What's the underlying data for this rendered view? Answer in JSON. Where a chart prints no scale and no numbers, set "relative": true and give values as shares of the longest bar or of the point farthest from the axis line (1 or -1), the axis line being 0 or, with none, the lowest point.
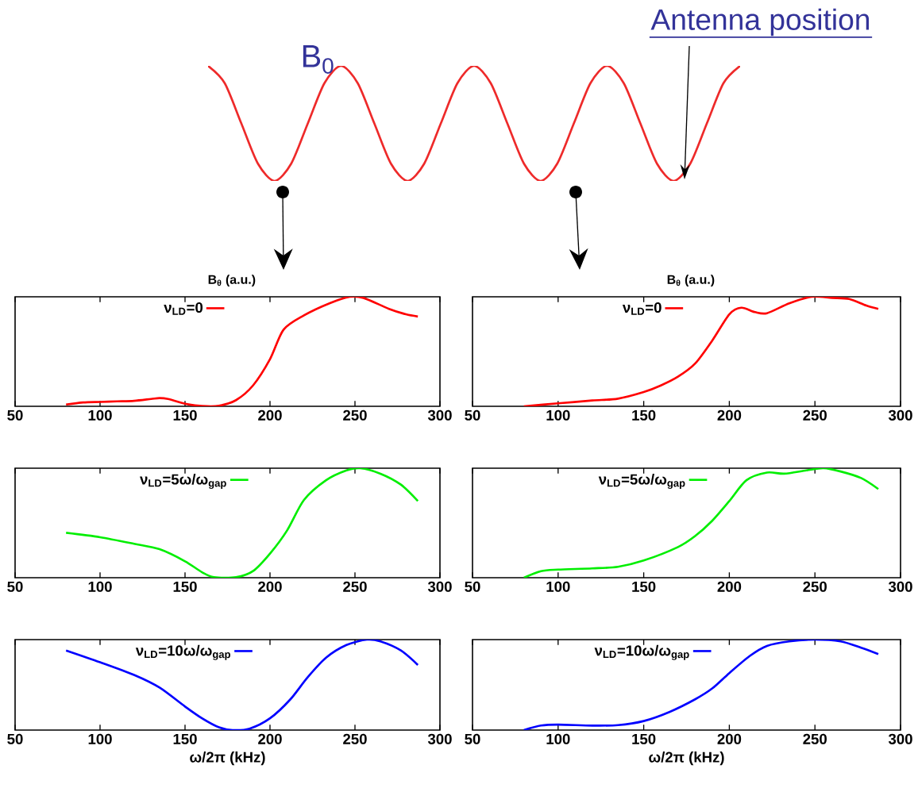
{
  "chart_data": [
    {
      "type": "line",
      "relative": true,
      "categories": [
        null,
        null,
        null,
        null,
        null,
        null,
        null,
        null,
        null,
        null,
        null,
        null,
        null,
        null,
        null,
        null,
        null,
        null,
        null,
        null,
        null,
        null,
        null,
        null,
        null,
        null,
        null,
        null,
        null,
        null,
        null,
        null,
        null
      ],
      "series": [
        {
          "color": "#ee2a2a",
          "values": [
            1,
            0.85,
            0.5,
            0.15,
            0,
            0.15,
            0.5,
            0.85,
            1,
            0.85,
            0.5,
            0.15,
            0,
            0.15,
            0.5,
            0.85,
            1,
            0.85,
            0.5,
            0.15,
            0,
            0.15,
            0.5,
            0.85,
            1,
            0.85,
            0.5,
            0.15,
            0,
            0.15,
            0.5,
            0.85,
            1
          ]
        }
      ],
      "annotations": [
        "B$_{0}$",
        "Antenna position"
      ]
    },
    {
      "type": "line",
      "relative": true,
      "ylabel": "B$_{θ}$ (a.u.)",
      "xlim": [
        50,
        300
      ],
      "xticks": [
        50,
        100,
        150,
        200,
        250,
        300
      ],
      "legend": "top",
      "x": [
        80,
        90,
        100,
        110,
        120,
        130,
        135,
        140,
        150,
        160,
        170,
        180,
        190,
        200,
        208,
        220,
        235,
        247,
        255,
        270,
        280,
        287
      ],
      "series": [
        {
          "name": "ν$_{LD}$=0",
          "color": "#ff0000",
          "values": [
            0.016,
            0.035,
            0.04,
            0.045,
            0.05,
            0.067,
            0.075,
            0.067,
            0.024,
            0.003,
            0.005,
            0.056,
            0.19,
            0.43,
            0.7,
            0.83,
            0.94,
            1.0,
            0.99,
            0.89,
            0.84,
            0.82
          ]
        }
      ]
    },
    {
      "type": "line",
      "relative": true,
      "ylabel": "B$_{θ}$ (a.u.)",
      "xlim": [
        50,
        300
      ],
      "xticks": [
        50,
        100,
        150,
        200,
        250,
        300
      ],
      "legend": "top",
      "x": [
        80,
        100,
        120,
        135,
        150,
        160,
        170,
        180,
        190,
        200,
        207,
        215,
        222,
        235,
        248,
        260,
        270,
        280,
        287
      ],
      "series": [
        {
          "name": "ν$_{LD}$=0",
          "color": "#ff0000",
          "values": [
            0,
            0.027,
            0.053,
            0.07,
            0.13,
            0.19,
            0.27,
            0.39,
            0.6,
            0.84,
            0.9,
            0.86,
            0.85,
            0.94,
            1.0,
            0.99,
            0.98,
            0.92,
            0.89
          ]
        }
      ]
    },
    {
      "type": "line",
      "relative": true,
      "xlim": [
        50,
        300
      ],
      "xticks": [
        50,
        100,
        150,
        200,
        250,
        300
      ],
      "legend": "top",
      "x": [
        80,
        100,
        120,
        135,
        150,
        160,
        167,
        180,
        190,
        200,
        210,
        220,
        233,
        245,
        253,
        265,
        277,
        287
      ],
      "series": [
        {
          "name": "ν$_{LD}$=5ω/ω$_{gap}$",
          "color": "#00ee00",
          "values": [
            0.41,
            0.37,
            0.31,
            0.26,
            0.15,
            0.05,
            0.005,
            0.005,
            0.06,
            0.22,
            0.43,
            0.71,
            0.89,
            0.98,
            1.0,
            0.95,
            0.85,
            0.7
          ]
        }
      ]
    },
    {
      "type": "line",
      "relative": true,
      "xlim": [
        50,
        300
      ],
      "xticks": [
        50,
        100,
        150,
        200,
        250,
        300
      ],
      "legend": "top",
      "x": [
        80,
        90,
        100,
        120,
        135,
        150,
        170,
        180,
        190,
        200,
        210,
        222,
        232,
        245,
        255,
        265,
        277,
        287
      ],
      "series": [
        {
          "name": "ν$_{LD}$=5ω/ω$_{gap}$",
          "color": "#00ee00",
          "values": [
            0,
            0.06,
            0.074,
            0.085,
            0.1,
            0.157,
            0.28,
            0.38,
            0.52,
            0.7,
            0.89,
            0.96,
            0.95,
            0.98,
            1.0,
            0.97,
            0.91,
            0.81
          ]
        }
      ]
    },
    {
      "type": "line",
      "relative": true,
      "xlabel": "ω/2π (kHz)",
      "xlim": [
        50,
        300
      ],
      "xticks": [
        50,
        100,
        150,
        200,
        250,
        300
      ],
      "legend": "top",
      "x": [
        80,
        100,
        120,
        135,
        150,
        160,
        170,
        178,
        188,
        200,
        212,
        222,
        233,
        245,
        257,
        265,
        277,
        287
      ],
      "series": [
        {
          "name": "ν$_{LD}$=10ω/ω$_{gap}$",
          "color": "#0000ff",
          "values": [
            0.88,
            0.75,
            0.61,
            0.47,
            0.26,
            0.13,
            0.03,
            0,
            0.016,
            0.13,
            0.34,
            0.58,
            0.8,
            0.94,
            1.0,
            0.98,
            0.88,
            0.72
          ]
        }
      ]
    },
    {
      "type": "line",
      "relative": true,
      "xlabel": "ω/2π (kHz)",
      "xlim": [
        50,
        300
      ],
      "xticks": [
        50,
        100,
        150,
        200,
        250,
        300
      ],
      "legend": "top",
      "x": [
        80,
        90,
        100,
        120,
        135,
        150,
        165,
        180,
        190,
        200,
        212,
        222,
        235,
        250,
        265,
        277,
        287
      ],
      "series": [
        {
          "name": "ν$_{LD}$=10ω/ω$_{gap}$",
          "color": "#0000ff",
          "values": [
            0,
            0.05,
            0.06,
            0.05,
            0.055,
            0.1,
            0.2,
            0.34,
            0.46,
            0.63,
            0.82,
            0.93,
            0.98,
            1.0,
            0.98,
            0.91,
            0.84
          ]
        }
      ]
    }
  ]
}
